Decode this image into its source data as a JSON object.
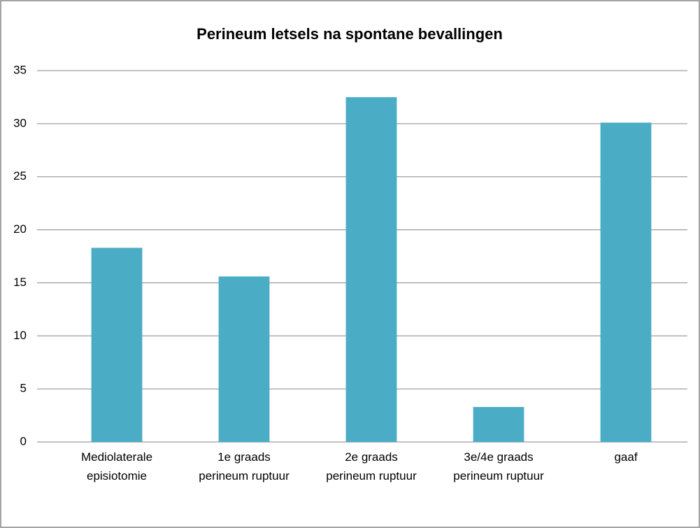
{
  "chart_data": {
    "type": "bar",
    "title": "Perineum letsels na spontane bevallingen",
    "categories": [
      "Mediolaterale episiotomie",
      "1e graads perineum ruptuur",
      "2e graads perineum ruptuur",
      "3e/4e graads perineum ruptuur",
      "gaaf"
    ],
    "values": [
      18.3,
      15.6,
      32.5,
      3.3,
      30.1
    ],
    "color": "#4bacc6",
    "ylim": [
      0,
      35
    ],
    "yticks": [
      0,
      5,
      10,
      15,
      20,
      25,
      30,
      35
    ],
    "grid": true
  }
}
